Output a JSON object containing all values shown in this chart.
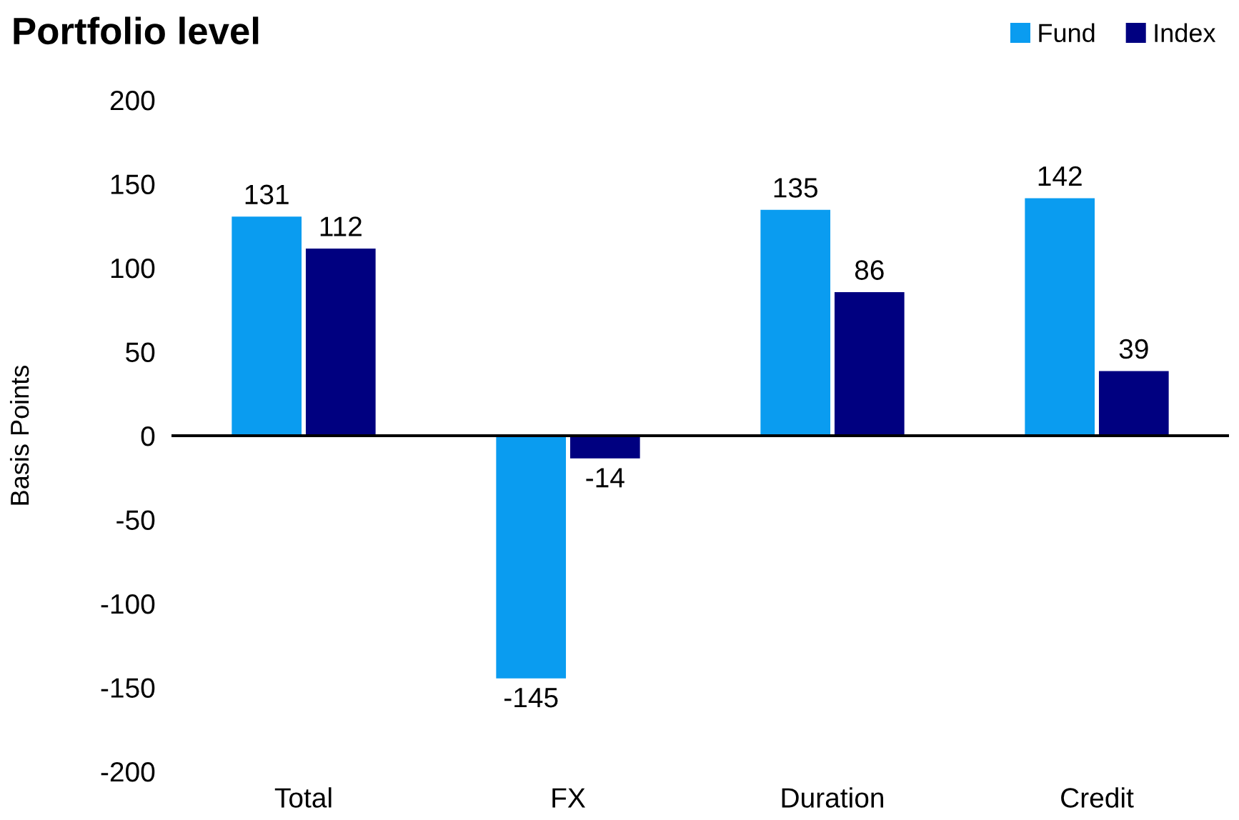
{
  "chart_data": {
    "type": "bar",
    "title": "Portfolio level",
    "ylabel": "Basis Points",
    "categories": [
      "Total",
      "FX",
      "Duration",
      "Credit"
    ],
    "series": [
      {
        "name": "Fund",
        "color": "#0a9cf0",
        "values": [
          131,
          -145,
          135,
          142
        ]
      },
      {
        "name": "Index",
        "color": "#000080",
        "values": [
          112,
          -14,
          86,
          39
        ]
      }
    ],
    "ylim": [
      -200,
      200
    ],
    "yticks": [
      -200,
      -150,
      -100,
      -50,
      0,
      50,
      100,
      150,
      200
    ],
    "ref_lines": [
      {
        "axis": "y",
        "value": 0,
        "color": "#000000",
        "line_style": "solid"
      }
    ],
    "data_labels": true,
    "legend": "top right"
  }
}
